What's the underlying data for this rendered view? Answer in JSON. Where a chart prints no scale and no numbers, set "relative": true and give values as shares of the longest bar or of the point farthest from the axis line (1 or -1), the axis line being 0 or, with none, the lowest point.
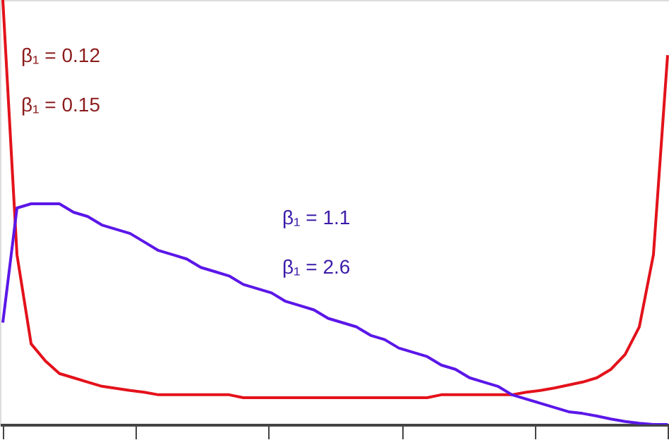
{
  "chart_data": {
    "type": "line",
    "relative": true,
    "tick_labels": false,
    "grid": false,
    "legend": false,
    "marker": "none",
    "line_style": "solid",
    "categories": [
      null,
      null,
      null,
      null,
      null,
      null,
      null,
      null,
      null,
      null,
      null,
      null,
      null,
      null,
      null,
      null,
      null,
      null,
      null,
      null,
      null,
      null,
      null,
      null,
      null,
      null,
      null,
      null,
      null,
      null,
      null,
      null,
      null,
      null,
      null,
      null,
      null,
      null,
      null,
      null,
      null,
      null,
      null,
      null,
      null,
      null,
      null,
      null
    ],
    "series": [
      {
        "color": "#e3121b",
        "values": [
          1.0,
          0.4,
          0.19,
          0.15,
          0.12,
          0.11,
          0.1,
          0.09,
          0.085,
          0.08,
          0.076,
          0.07,
          0.07,
          0.07,
          0.07,
          0.07,
          0.07,
          0.063,
          0.063,
          0.063,
          0.063,
          0.063,
          0.063,
          0.063,
          0.063,
          0.063,
          0.063,
          0.063,
          0.063,
          0.063,
          0.063,
          0.07,
          0.07,
          0.07,
          0.07,
          0.07,
          0.07,
          0.076,
          0.08,
          0.086,
          0.093,
          0.1,
          0.11,
          0.13,
          0.165,
          0.23,
          0.4,
          0.87
        ]
      },
      {
        "color": "#5b17e8",
        "values": [
          0.24,
          0.51,
          0.52,
          0.52,
          0.52,
          0.5,
          0.49,
          0.47,
          0.46,
          0.45,
          0.43,
          0.41,
          0.4,
          0.39,
          0.37,
          0.36,
          0.35,
          0.33,
          0.32,
          0.31,
          0.29,
          0.28,
          0.27,
          0.25,
          0.24,
          0.23,
          0.21,
          0.2,
          0.18,
          0.17,
          0.16,
          0.14,
          0.13,
          0.11,
          0.1,
          0.09,
          0.07,
          0.06,
          0.05,
          0.04,
          0.03,
          0.026,
          0.02,
          0.013,
          0.007,
          0.003,
          0,
          0
        ]
      }
    ],
    "annotations": [
      "β₁ = 0.12",
      "β₁ = 0.15",
      "β₁ = 1.1",
      "β₁ = 2.6"
    ]
  }
}
